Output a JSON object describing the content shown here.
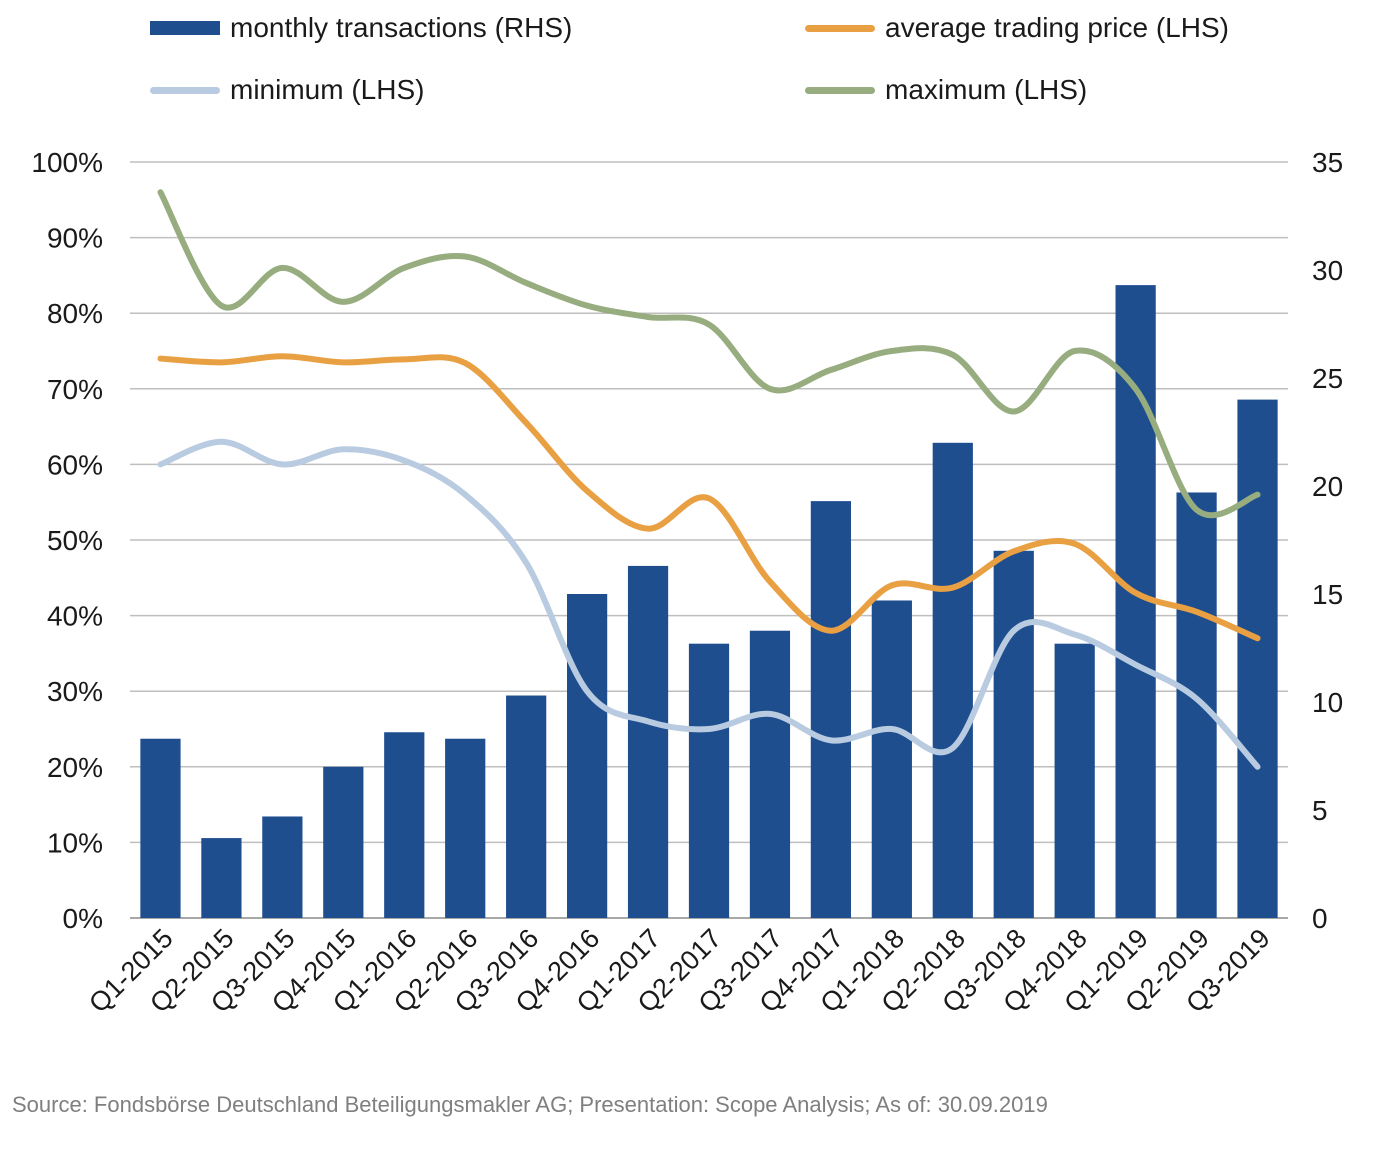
{
  "chart_data": {
    "type": "bar",
    "categories": [
      "Q1-2015",
      "Q2-2015",
      "Q3-2015",
      "Q4-2015",
      "Q1-2016",
      "Q2-2016",
      "Q3-2016",
      "Q4-2016",
      "Q1-2017",
      "Q2-2017",
      "Q3-2017",
      "Q4-2017",
      "Q1-2018",
      "Q2-2018",
      "Q3-2018",
      "Q4-2018",
      "Q1-2019",
      "Q2-2019",
      "Q3-2019"
    ],
    "bar_series": {
      "name": "monthly transactions (RHS)",
      "axis": "right",
      "color": "#1f4e8f",
      "values": [
        8.3,
        3.7,
        4.7,
        7.0,
        8.6,
        8.3,
        10.3,
        15.0,
        16.3,
        12.7,
        13.3,
        19.3,
        14.7,
        22.0,
        17.0,
        12.7,
        29.3,
        19.7,
        24.0
      ]
    },
    "line_series": [
      {
        "name": "average trading price (LHS)",
        "axis": "left",
        "color": "#e8a043",
        "values": [
          74,
          73.5,
          74.3,
          73.5,
          73.9,
          73.4,
          65.5,
          56.5,
          51.5,
          55.5,
          44.5,
          38.0,
          44.0,
          43.7,
          48.5,
          49.5,
          43.0,
          40.5,
          37.0
        ]
      },
      {
        "name": "minimum (LHS)",
        "axis": "left",
        "color": "#b8cbe0",
        "values": [
          60,
          63,
          60,
          62,
          60.5,
          56,
          47,
          30,
          26,
          25,
          27,
          23.5,
          25,
          22.5,
          38,
          37.5,
          33.5,
          29,
          20
        ]
      },
      {
        "name": "maximum (LHS)",
        "axis": "left",
        "color": "#97ad7f",
        "values": [
          96,
          81,
          86,
          81.5,
          86,
          87.5,
          84,
          81,
          79.5,
          78.5,
          70,
          72.5,
          75,
          74.5,
          67,
          75,
          70,
          54,
          56
        ]
      }
    ],
    "left_axis": {
      "ylim": [
        0,
        100
      ],
      "ticks": [
        0,
        10,
        20,
        30,
        40,
        50,
        60,
        70,
        80,
        90,
        100
      ],
      "tick_labels": [
        "0%",
        "10%",
        "20%",
        "30%",
        "40%",
        "50%",
        "60%",
        "70%",
        "80%",
        "90%",
        "100%"
      ]
    },
    "right_axis": {
      "ylim": [
        0,
        35
      ],
      "ticks": [
        0,
        5,
        10,
        15,
        20,
        25,
        30,
        35
      ],
      "tick_labels": [
        "0",
        "5",
        "10",
        "15",
        "20",
        "25",
        "30",
        "35"
      ]
    },
    "grid": true,
    "legend_position": "top"
  },
  "legend": [
    {
      "label": "monthly transactions (RHS)",
      "kind": "bar",
      "color": "#1f4e8f"
    },
    {
      "label": "average trading price (LHS)",
      "kind": "line",
      "color": "#e8a043"
    },
    {
      "label": "minimum (LHS)",
      "kind": "line",
      "color": "#b8cbe0"
    },
    {
      "label": "maximum (LHS)",
      "kind": "line",
      "color": "#97ad7f"
    }
  ],
  "source_text": "Source: Fondsbörse Deutschland Beteiligungsmakler AG; Presentation: Scope Analysis; As of: 30.09.2019"
}
